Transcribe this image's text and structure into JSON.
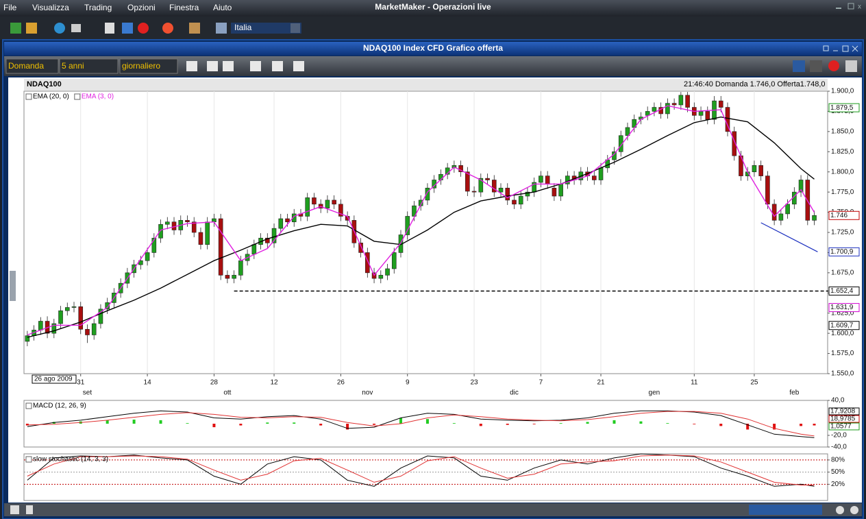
{
  "app": {
    "title": "MarketMaker - Operazioni live",
    "menu": [
      "File",
      "Visualizza",
      "Trading",
      "Opzioni",
      "Finestra",
      "Aiuto"
    ],
    "market": "Italia",
    "window_title": "NDAQ100 Index CFD Grafico offerta",
    "selectors": [
      "Domanda",
      "5 anni",
      "giornaliero"
    ]
  },
  "chart_data": [
    {
      "type": "candlestick",
      "title": "NDAQ100",
      "quote": "21:46:40 Domanda 1.746,0 Offerta1.748,0",
      "cursor_label": "26 ago 2009",
      "up_color": "#1f9e1f",
      "down_color": "#a80f0f",
      "grid": true,
      "open": [
        1590,
        1597,
        1604,
        1615,
        1600,
        1612,
        1628,
        1632,
        1633,
        1605,
        1598,
        1612,
        1630,
        1638,
        1650,
        1662,
        1675,
        1685,
        1690,
        1700,
        1718,
        1735,
        1738,
        1728,
        1740,
        1738,
        1725,
        1710,
        1738,
        1742,
        1672,
        1668,
        1672,
        1690,
        1698,
        1710,
        1718,
        1712,
        1730,
        1742,
        1738,
        1748,
        1745,
        1768,
        1760,
        1755,
        1765,
        1760,
        1745,
        1740,
        1712,
        1700,
        1675,
        1668,
        1672,
        1680,
        1700,
        1722,
        1745,
        1758,
        1765,
        1780,
        1790,
        1797,
        1805,
        1808,
        1800,
        1776,
        1775,
        1792,
        1790,
        1775,
        1780,
        1765,
        1760,
        1770,
        1775,
        1787,
        1795,
        1780,
        1770,
        1785,
        1795,
        1790,
        1800,
        1795,
        1790,
        1805,
        1815,
        1825,
        1845,
        1855,
        1865,
        1870,
        1875,
        1880,
        1872,
        1885,
        1883,
        1895,
        1880,
        1870,
        1875,
        1865,
        1888,
        1880,
        1850,
        1820,
        1795,
        1800,
        1808,
        1795,
        1760,
        1740,
        1748,
        1760,
        1775,
        1790,
        1740
      ],
      "high": [
        1603,
        1610,
        1620,
        1621,
        1618,
        1634,
        1638,
        1639,
        1639,
        1611,
        1618,
        1636,
        1644,
        1656,
        1668,
        1681,
        1691,
        1696,
        1706,
        1724,
        1741,
        1744,
        1744,
        1746,
        1746,
        1744,
        1731,
        1744,
        1748,
        1748,
        1678,
        1678,
        1696,
        1704,
        1716,
        1724,
        1724,
        1736,
        1748,
        1748,
        1754,
        1754,
        1774,
        1774,
        1766,
        1771,
        1771,
        1766,
        1751,
        1746,
        1718,
        1706,
        1681,
        1678,
        1686,
        1706,
        1728,
        1751,
        1764,
        1771,
        1786,
        1796,
        1803,
        1811,
        1814,
        1814,
        1806,
        1782,
        1798,
        1798,
        1796,
        1786,
        1786,
        1771,
        1776,
        1781,
        1793,
        1801,
        1801,
        1786,
        1791,
        1801,
        1801,
        1806,
        1806,
        1801,
        1811,
        1821,
        1831,
        1851,
        1861,
        1871,
        1874,
        1881,
        1886,
        1886,
        1891,
        1891,
        1899,
        1899,
        1886,
        1881,
        1881,
        1894,
        1894,
        1886,
        1856,
        1826,
        1806,
        1814,
        1814,
        1801,
        1766,
        1754,
        1766,
        1781,
        1796,
        1796,
        1752
      ],
      "low": [
        1584,
        1591,
        1598,
        1594,
        1594,
        1606,
        1622,
        1626,
        1599,
        1588,
        1592,
        1606,
        1624,
        1632,
        1644,
        1656,
        1669,
        1679,
        1684,
        1694,
        1712,
        1729,
        1722,
        1722,
        1732,
        1719,
        1704,
        1704,
        1732,
        1666,
        1662,
        1662,
        1666,
        1684,
        1692,
        1704,
        1706,
        1706,
        1724,
        1732,
        1732,
        1739,
        1739,
        1754,
        1749,
        1749,
        1754,
        1739,
        1734,
        1706,
        1694,
        1669,
        1662,
        1662,
        1666,
        1674,
        1694,
        1716,
        1739,
        1752,
        1759,
        1774,
        1784,
        1791,
        1799,
        1794,
        1770,
        1769,
        1769,
        1784,
        1769,
        1769,
        1759,
        1754,
        1754,
        1764,
        1769,
        1781,
        1779,
        1764,
        1764,
        1779,
        1784,
        1784,
        1789,
        1784,
        1784,
        1799,
        1809,
        1819,
        1839,
        1849,
        1859,
        1864,
        1869,
        1866,
        1866,
        1877,
        1877,
        1874,
        1864,
        1864,
        1859,
        1859,
        1874,
        1844,
        1814,
        1789,
        1789,
        1794,
        1789,
        1754,
        1734,
        1734,
        1742,
        1754,
        1769,
        1734,
        1734
      ],
      "close": [
        1597,
        1604,
        1615,
        1600,
        1612,
        1628,
        1632,
        1633,
        1605,
        1598,
        1612,
        1630,
        1638,
        1650,
        1662,
        1675,
        1685,
        1690,
        1700,
        1718,
        1735,
        1738,
        1728,
        1740,
        1738,
        1725,
        1710,
        1738,
        1742,
        1672,
        1668,
        1672,
        1690,
        1698,
        1710,
        1718,
        1712,
        1730,
        1742,
        1738,
        1748,
        1745,
        1768,
        1760,
        1755,
        1765,
        1760,
        1745,
        1740,
        1712,
        1700,
        1675,
        1668,
        1672,
        1680,
        1700,
        1722,
        1745,
        1758,
        1765,
        1780,
        1790,
        1797,
        1805,
        1808,
        1800,
        1776,
        1775,
        1792,
        1790,
        1775,
        1780,
        1765,
        1760,
        1770,
        1775,
        1787,
        1795,
        1785,
        1770,
        1785,
        1795,
        1790,
        1800,
        1795,
        1790,
        1805,
        1815,
        1825,
        1845,
        1855,
        1865,
        1868,
        1875,
        1880,
        1872,
        1885,
        1883,
        1895,
        1880,
        1870,
        1875,
        1865,
        1888,
        1880,
        1850,
        1820,
        1795,
        1800,
        1808,
        1795,
        1760,
        1740,
        1748,
        1760,
        1775,
        1790,
        1740,
        1746
      ],
      "xlim": [
        -0.5,
        120
      ],
      "ylim": [
        1550,
        1900
      ],
      "xticks": [
        {
          "value": 8,
          "label": "31"
        },
        {
          "value": 18,
          "label": "14"
        },
        {
          "value": 28,
          "label": "28"
        },
        {
          "value": 37,
          "label": "12"
        },
        {
          "value": 47,
          "label": "26"
        },
        {
          "value": 57,
          "label": "9"
        },
        {
          "value": 67,
          "label": "23"
        },
        {
          "value": 77,
          "label": "7"
        },
        {
          "value": 86,
          "label": "21"
        },
        {
          "value": 100,
          "label": "11"
        },
        {
          "value": 109,
          "label": "25"
        }
      ],
      "month_ticks": [
        {
          "value": 9,
          "label": "set"
        },
        {
          "value": 30,
          "label": "ott"
        },
        {
          "value": 51,
          "label": "nov"
        },
        {
          "value": 73,
          "label": "dic"
        },
        {
          "value": 94,
          "label": "gen"
        },
        {
          "value": 115,
          "label": "feb"
        }
      ],
      "yticks": [
        {
          "value": 1900,
          "label": "1.900,0"
        },
        {
          "value": 1875,
          "label": "1.875,0"
        },
        {
          "value": 1850,
          "label": "1.850,0"
        },
        {
          "value": 1825,
          "label": "1.825,0"
        },
        {
          "value": 1800,
          "label": "1.800,0"
        },
        {
          "value": 1775,
          "label": "1.775,0"
        },
        {
          "value": 1750,
          "label": "1.750,0"
        },
        {
          "value": 1725,
          "label": "1.725,0"
        },
        {
          "value": 1700,
          "label": "1.700,0"
        },
        {
          "value": 1675,
          "label": "1.675,0"
        },
        {
          "value": 1650,
          "label": "1.650,0"
        },
        {
          "value": 1625,
          "label": "1.625,0"
        },
        {
          "value": 1600,
          "label": "1.600,0"
        },
        {
          "value": 1575,
          "label": "1.575,0"
        },
        {
          "value": 1550,
          "label": "1.550,0"
        }
      ],
      "lines": [
        {
          "name": "EMA (20, 0)",
          "color": "#000000",
          "x": [
            0,
            4,
            8,
            12,
            16,
            20,
            24,
            28,
            32,
            36,
            40,
            44,
            48,
            52,
            56,
            60,
            64,
            68,
            72,
            76,
            80,
            84,
            88,
            92,
            96,
            100,
            104,
            108,
            112,
            116,
            118
          ],
          "values": [
            1595,
            1603,
            1614,
            1628,
            1641,
            1656,
            1673,
            1690,
            1703,
            1717,
            1727,
            1735,
            1733,
            1714,
            1710,
            1728,
            1750,
            1764,
            1770,
            1775,
            1785,
            1798,
            1812,
            1828,
            1845,
            1861,
            1868,
            1862,
            1836,
            1804,
            1791
          ]
        },
        {
          "name": "EMA (3, 0)",
          "color": "#e020e0",
          "x": [
            0,
            4,
            8,
            12,
            16,
            20,
            24,
            28,
            32,
            36,
            40,
            44,
            48,
            52,
            56,
            60,
            64,
            68,
            72,
            76,
            80,
            84,
            88,
            92,
            96,
            100,
            104,
            108,
            112,
            116,
            118
          ],
          "values": [
            1598,
            1610,
            1610,
            1632,
            1680,
            1728,
            1736,
            1738,
            1690,
            1705,
            1745,
            1757,
            1745,
            1672,
            1712,
            1775,
            1806,
            1790,
            1768,
            1785,
            1785,
            1795,
            1822,
            1865,
            1882,
            1875,
            1877,
            1800,
            1745,
            1778,
            1750
          ]
        }
      ],
      "trendline": {
        "color": "#1b2fbf",
        "x": [
          110,
          118.5
        ],
        "values": [
          1737,
          1701
        ]
      },
      "support": {
        "from": 31,
        "tag": 3
      },
      "price_tags": [
        {
          "value": 1879.5,
          "label": "1.879,5",
          "color": "#1a9a1a"
        },
        {
          "value": 1746,
          "label": "1.746",
          "color": "#c00000"
        },
        {
          "value": 1700.9,
          "label": "1.700,9",
          "color": "#1b2fbf"
        },
        {
          "value": 1652.4,
          "label": "1.652,4",
          "color": "#000000"
        },
        {
          "value": 1631.9,
          "label": "1.631,9",
          "color": "#d000d0"
        },
        {
          "value": 1609.7,
          "label": "1.609,7",
          "color": "#000000"
        }
      ]
    },
    {
      "type": "macd",
      "title": "MACD (12, 26, 9)",
      "xlim": [
        -0.5,
        120
      ],
      "ylim": [
        -40,
        40
      ],
      "yticks": [
        {
          "value": 40,
          "label": "40,0"
        },
        {
          "value": -20,
          "label": "-20,0"
        },
        {
          "value": -40,
          "label": "-40,0"
        }
      ],
      "x": [
        0,
        4,
        8,
        12,
        16,
        20,
        24,
        28,
        32,
        36,
        40,
        44,
        48,
        52,
        56,
        60,
        64,
        68,
        72,
        76,
        80,
        84,
        88,
        92,
        96,
        100,
        104,
        108,
        112,
        116,
        118
      ],
      "series": [
        {
          "color": "#000000",
          "values": [
            -5,
            2,
            6,
            12,
            18,
            22,
            20,
            10,
            8,
            12,
            14,
            8,
            -8,
            -6,
            10,
            18,
            16,
            8,
            6,
            5,
            6,
            10,
            18,
            22,
            22,
            20,
            14,
            -2,
            -18,
            -22,
            -24
          ]
        },
        {
          "color": "#e03030",
          "values": [
            -2,
            -1,
            2,
            6,
            11,
            16,
            19,
            16,
            11,
            10,
            12,
            11,
            2,
            -4,
            0,
            10,
            15,
            12,
            8,
            6,
            5,
            7,
            12,
            18,
            21,
            21,
            18,
            8,
            -8,
            -18,
            -21
          ]
        }
      ],
      "histogram": {
        "up_color": "#22cc22",
        "down_color": "#e01010",
        "values": [
          -3,
          3,
          4,
          6,
          7,
          6,
          1,
          -6,
          -3,
          2,
          2,
          -3,
          -10,
          -2,
          10,
          8,
          1,
          -4,
          -2,
          -1,
          1,
          3,
          6,
          4,
          1,
          -1,
          -4,
          -10,
          -10,
          -4,
          -3
        ]
      },
      "tags": [
        {
          "label": "17,9208",
          "color": "#000000"
        },
        {
          "label": "18,9785",
          "color": "#c00000"
        },
        {
          "label": "1,0577",
          "color": "#1a9a1a"
        }
      ]
    },
    {
      "type": "line",
      "title": "slow stochastic (14, 3, 3)",
      "xlim": [
        -0.5,
        120
      ],
      "ylim": [
        -20,
        95
      ],
      "yticks": [
        {
          "value": 80,
          "label": "80%"
        },
        {
          "value": 50,
          "label": "50%"
        },
        {
          "value": 20,
          "label": "20%"
        }
      ],
      "grid_colors": [
        "#c00000",
        "#999999",
        "#c00000"
      ],
      "x": [
        0,
        4,
        8,
        12,
        16,
        20,
        24,
        28,
        32,
        36,
        40,
        44,
        48,
        52,
        56,
        60,
        64,
        68,
        72,
        76,
        80,
        84,
        88,
        92,
        96,
        100,
        104,
        108,
        112,
        116,
        118
      ],
      "series": [
        {
          "color": "#000000",
          "values": [
            30,
            85,
            90,
            88,
            92,
            85,
            80,
            40,
            20,
            70,
            88,
            80,
            30,
            15,
            60,
            90,
            85,
            40,
            30,
            60,
            80,
            70,
            85,
            95,
            92,
            88,
            60,
            40,
            15,
            20,
            15
          ]
        },
        {
          "color": "#e03030",
          "values": [
            40,
            70,
            88,
            88,
            90,
            88,
            82,
            55,
            30,
            45,
            78,
            84,
            55,
            25,
            40,
            78,
            88,
            60,
            35,
            45,
            70,
            75,
            78,
            90,
            92,
            90,
            75,
            50,
            25,
            18,
            18
          ]
        }
      ]
    }
  ]
}
